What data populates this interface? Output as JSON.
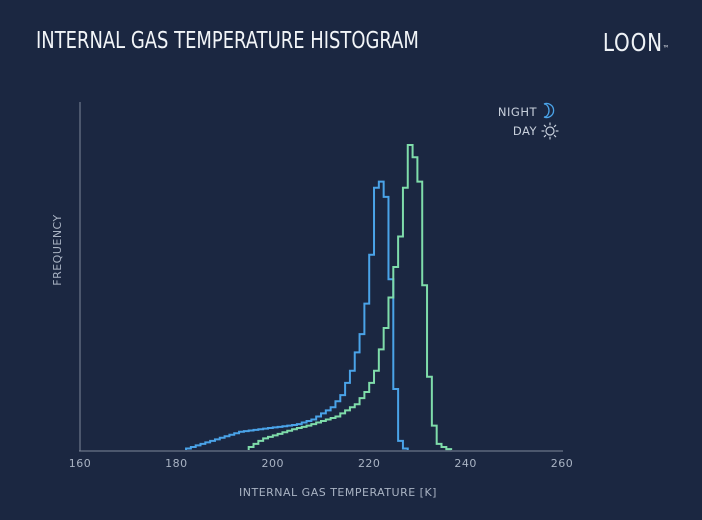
{
  "title": "INTERNAL GAS TEMPERATURE HISTOGRAM",
  "brand": "LOON",
  "colors": {
    "background": "#1b2741",
    "night": "#4aa3e8",
    "day": "#7fdcaa",
    "axis": "#7d8799"
  },
  "chart_data": {
    "type": "histogram",
    "title": "INTERNAL GAS TEMPERATURE HISTOGRAM",
    "xlabel": "INTERNAL GAS TEMPERATURE [K]",
    "ylabel": "FREQUENCY",
    "xlim": [
      160,
      260
    ],
    "ylim": [
      0,
      100
    ],
    "xticks": [
      160,
      180,
      200,
      220,
      240,
      260
    ],
    "bin_width": 1,
    "grid": false,
    "legend_position": "top-right",
    "series": [
      {
        "name": "NIGHT",
        "icon": "moon-icon",
        "color": "#4aa3e8",
        "x": [
          182,
          183,
          184,
          185,
          186,
          187,
          188,
          189,
          190,
          191,
          192,
          193,
          194,
          195,
          196,
          197,
          198,
          199,
          200,
          201,
          202,
          203,
          204,
          205,
          206,
          207,
          208,
          209,
          210,
          211,
          212,
          213,
          214,
          215,
          216,
          217,
          218,
          219,
          220,
          221,
          222,
          223,
          224,
          225,
          226,
          227
        ],
        "values": [
          0.5,
          1,
          1.5,
          2,
          2.5,
          3,
          3.5,
          4,
          4.5,
          5,
          5.5,
          6,
          6.2,
          6.4,
          6.6,
          6.8,
          7,
          7.2,
          7.4,
          7.6,
          7.8,
          8,
          8.2,
          8.5,
          9,
          9.5,
          10,
          11,
          12,
          13,
          14,
          16,
          18,
          22,
          26,
          32,
          38,
          48,
          64,
          86,
          88,
          83,
          56,
          20,
          3,
          0.5
        ]
      },
      {
        "name": "DAY",
        "icon": "sun-icon",
        "color": "#7fdcaa",
        "x": [
          195,
          196,
          197,
          198,
          199,
          200,
          201,
          202,
          203,
          204,
          205,
          206,
          207,
          208,
          209,
          210,
          211,
          212,
          213,
          214,
          215,
          216,
          217,
          218,
          219,
          220,
          221,
          222,
          223,
          224,
          225,
          226,
          227,
          228,
          229,
          230,
          231,
          232,
          233,
          234,
          235,
          236
        ],
        "values": [
          1,
          2,
          3,
          3.8,
          4.3,
          4.8,
          5.3,
          5.8,
          6.3,
          6.8,
          7.2,
          7.6,
          8,
          8.5,
          9,
          9.5,
          10,
          10.5,
          11,
          12,
          13,
          14,
          15,
          17,
          19,
          22,
          26,
          33,
          40,
          50,
          60,
          70,
          86,
          100,
          96,
          88,
          54,
          24,
          8,
          2,
          1,
          0.3
        ]
      }
    ]
  }
}
